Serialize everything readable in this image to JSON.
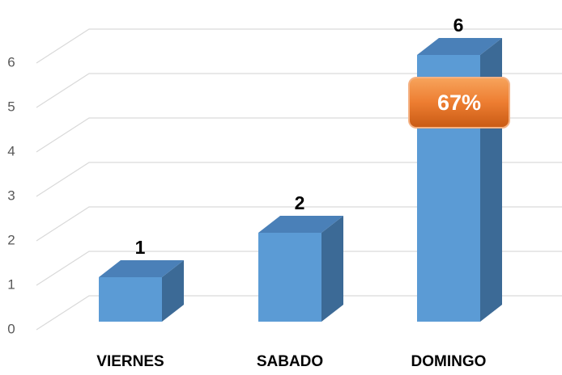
{
  "chart_data": {
    "type": "bar3d",
    "categories": [
      "VIERNES",
      "SABADO",
      "DOMINGO"
    ],
    "values": [
      1,
      2,
      6
    ],
    "color": "#5b9bd5",
    "ylim": [
      0,
      6
    ],
    "yticks": [
      0,
      1,
      2,
      3,
      4,
      5,
      6
    ],
    "grid": true,
    "annotation": "67%"
  }
}
